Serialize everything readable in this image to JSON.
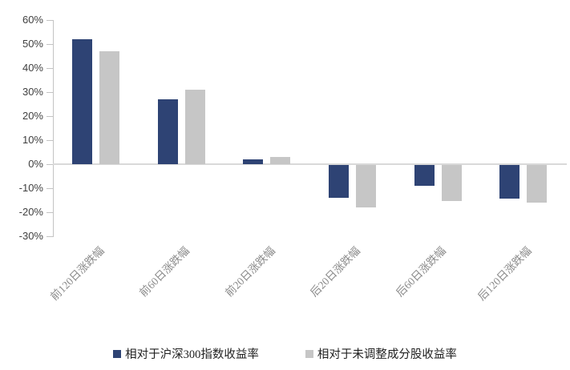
{
  "chart_data": {
    "type": "bar",
    "categories": [
      "前120日涨跌幅",
      "前60日涨跌幅",
      "前20日涨跌幅",
      "后20日涨跌幅",
      "后60日涨跌幅",
      "后120日涨跌幅"
    ],
    "series": [
      {
        "name": "相对于沪深300指数收益率",
        "color": "#2e4374",
        "values": [
          52,
          27,
          2,
          -13.5,
          -8.5,
          -14
        ]
      },
      {
        "name": "相对于未调整成分股收益率",
        "color": "#c6c6c6",
        "values": [
          47,
          31,
          3,
          -17.5,
          -15,
          -15.5
        ]
      }
    ],
    "title": "",
    "xlabel": "",
    "ylabel": "",
    "ylim": [
      -30,
      60
    ],
    "ytick_step": 10,
    "ytick_labels": [
      "60%",
      "50%",
      "40%",
      "30%",
      "20%",
      "10%",
      "0%",
      "-10%",
      "-20%",
      "-30%"
    ],
    "grid": "zero-baseline-only",
    "legend_position": "bottom-center",
    "axis_color": "#c3c3c3",
    "zero_line_color": "#d9d9d9"
  }
}
